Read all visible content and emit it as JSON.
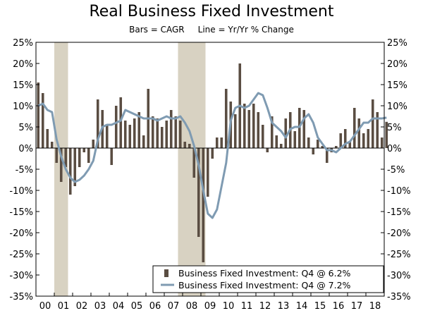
{
  "chart_data": {
    "type": "bar",
    "title": "Real Business Fixed Investment",
    "subtitle": "Bars = CAGR     Line = Yr/Yr % Change",
    "ylim": [
      -35,
      25
    ],
    "y_ticks": [
      "25%",
      "20%",
      "15%",
      "10%",
      "5%",
      "0%",
      "-5%",
      "-10%",
      "-15%",
      "-20%",
      "-25%",
      "-30%",
      "-35%"
    ],
    "x_ticks": [
      "00",
      "01",
      "02",
      "03",
      "04",
      "05",
      "06",
      "07",
      "08",
      "09",
      "10",
      "11",
      "12",
      "13",
      "14",
      "15",
      "16",
      "17",
      "18"
    ],
    "grid": false,
    "legend_position": "bottom-right",
    "recessions": [
      {
        "start": 2001.0,
        "end": 2001.75
      },
      {
        "start": 2007.75,
        "end": 2009.25
      }
    ],
    "series": [
      {
        "name": "Business Fixed Investment: Q4 @ 6.2%",
        "type": "bar",
        "color": "#5a4d42",
        "values": [
          15.5,
          13.0,
          4.5,
          1.5,
          -3.5,
          -8.0,
          -4.5,
          -11.0,
          -9.0,
          -4.5,
          -1.0,
          -3.5,
          2.0,
          11.5,
          9.0,
          5.5,
          -4.0,
          10.0,
          12.0,
          6.5,
          5.5,
          7.0,
          8.5,
          3.0,
          14.0,
          7.5,
          7.0,
          5.0,
          6.5,
          9.0,
          7.5,
          6.5,
          1.5,
          1.0,
          -7.0,
          -21.0,
          -27.0,
          -11.5,
          -2.5,
          2.5,
          2.5,
          14.0,
          11.0,
          8.0,
          20.0,
          10.5,
          9.0,
          10.5,
          8.5,
          5.5,
          -1.0,
          7.5,
          3.0,
          1.0,
          7.0,
          8.5,
          4.0,
          9.5,
          9.0,
          2.5,
          -1.5,
          2.0,
          0.5,
          -3.5,
          -1.0,
          0.5,
          3.5,
          4.5,
          1.5,
          9.5,
          7.0,
          3.5,
          4.5,
          11.5,
          8.5,
          2.5,
          6.2
        ]
      },
      {
        "name": "Business Fixed Investment: Q4 @ 7.2%",
        "type": "line",
        "color": "#7f9bb2",
        "values": [
          10.0,
          10.5,
          9.0,
          8.5,
          2.0,
          -2.0,
          -5.0,
          -7.0,
          -8.0,
          -7.5,
          -6.5,
          -5.0,
          -3.0,
          2.0,
          5.0,
          5.5,
          5.5,
          6.0,
          6.5,
          9.0,
          8.5,
          8.0,
          7.5,
          7.0,
          7.0,
          7.0,
          6.5,
          7.0,
          7.5,
          7.0,
          7.0,
          7.5,
          6.0,
          4.0,
          0.5,
          -4.0,
          -10.0,
          -15.5,
          -16.5,
          -14.5,
          -9.0,
          -3.5,
          6.5,
          9.5,
          10.0,
          9.5,
          10.0,
          11.5,
          13.0,
          12.5,
          9.5,
          6.0,
          5.0,
          4.0,
          2.5,
          4.5,
          5.0,
          5.0,
          7.0,
          8.0,
          6.0,
          2.5,
          1.0,
          -0.5,
          -0.5,
          -1.0,
          0.0,
          1.0,
          1.5,
          3.0,
          4.5,
          6.0,
          6.0,
          7.0,
          7.0,
          7.0,
          7.2
        ]
      }
    ]
  }
}
